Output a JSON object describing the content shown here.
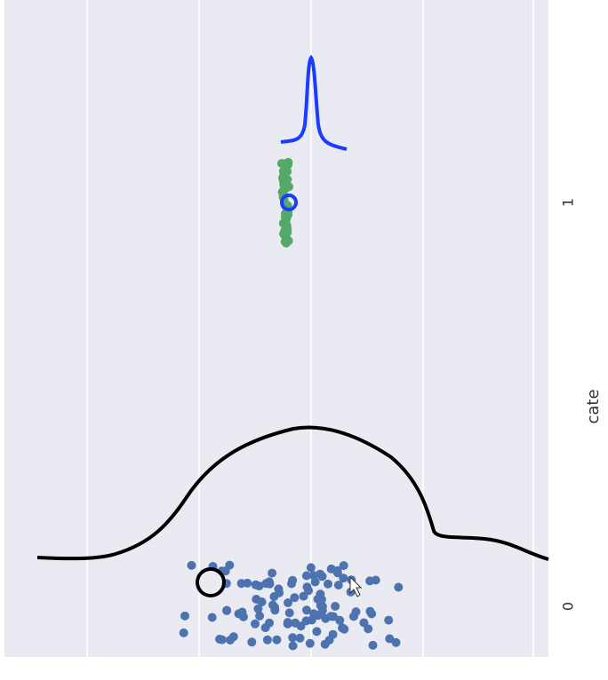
{
  "axis": {
    "label": "cate",
    "ticks": [
      "1",
      "0"
    ]
  }
}
